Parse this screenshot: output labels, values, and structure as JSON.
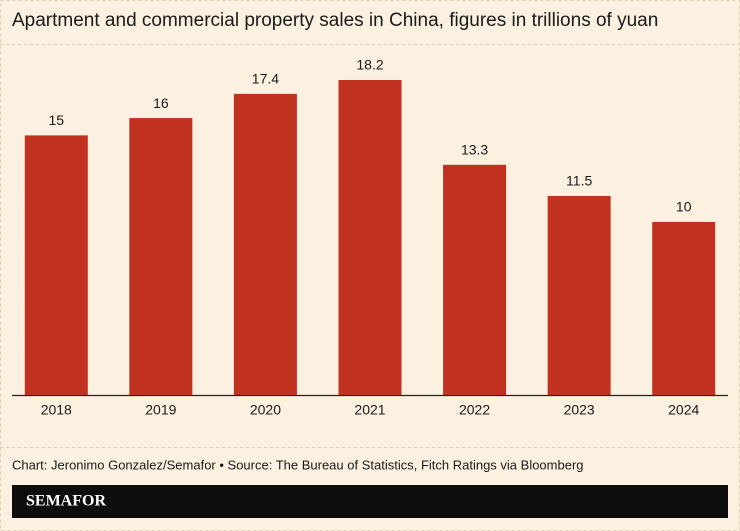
{
  "chart_data": {
    "type": "bar",
    "title": "Apartment and commercial property sales in China, figures in trillions of yuan",
    "categories": [
      "2018",
      "2019",
      "2020",
      "2021",
      "2022",
      "2023",
      "2024"
    ],
    "values": [
      15,
      16,
      17.4,
      18.2,
      13.3,
      11.5,
      10
    ],
    "color": "#c0311f",
    "source": "Chart: Jeronimo Gonzalez/Semafor • Source: The Bureau of Statistics, Fitch Ratings via Bloomberg",
    "brand": "SEMAFOR"
  }
}
